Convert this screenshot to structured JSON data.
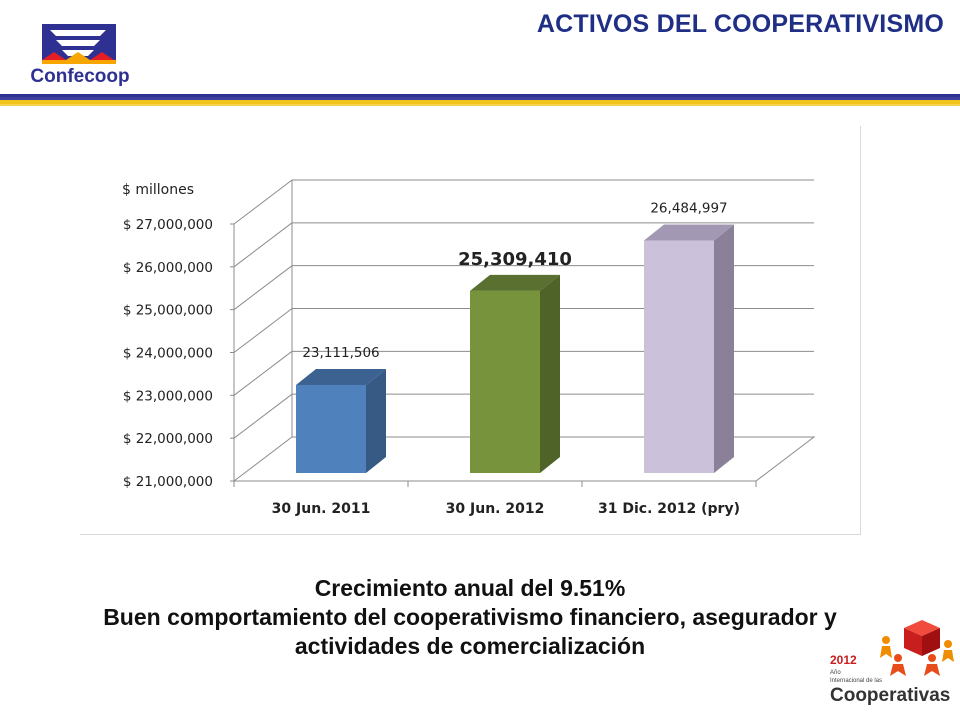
{
  "header": {
    "logo_text": "Confecoop",
    "title": "ACTIVOS DEL COOPERATIVISMO"
  },
  "chart_data": {
    "type": "bar",
    "ylabel": "$ millones",
    "categories": [
      "30 Jun. 2011",
      "30 Jun. 2012",
      "31 Dic. 2012 (pry)"
    ],
    "values": [
      23111506,
      25309410,
      26484997
    ],
    "data_labels": [
      "23,111,506",
      "25,309,410",
      "26,484,997"
    ],
    "highlight_index": 1,
    "ylim": [
      21000000,
      27000000
    ],
    "yticks": [
      21000000,
      22000000,
      23000000,
      24000000,
      25000000,
      26000000,
      27000000
    ],
    "ytick_labels": [
      "$ 21,000,000",
      "$ 22,000,000",
      "$ 23,000,000",
      "$ 24,000,000",
      "$ 25,000,000",
      "$ 26,000,000",
      "$ 27,000,000"
    ],
    "grid": true,
    "style": "3d-column",
    "bar_colors": [
      "#4f81bd",
      "#77933c",
      "#ccc1da"
    ],
    "bar_side_colors": [
      "#375a85",
      "#4f6228",
      "#8a8199"
    ],
    "bar_top_colors": [
      "#3b6290",
      "#5a7030",
      "#a398b3"
    ]
  },
  "footer": {
    "line1": "Crecimiento anual del 9.51%",
    "line2": "Buen comportamiento del cooperativismo financiero, asegurador y",
    "line3": "actividades de comercialización"
  },
  "badge": {
    "year": "2012",
    "small1": "Año",
    "small2": "Internacional de las",
    "word": "Cooperativas"
  },
  "colors": {
    "title": "#1f2f86",
    "rule_blue": "#2e3192",
    "rule_gold": "#f0c419"
  }
}
